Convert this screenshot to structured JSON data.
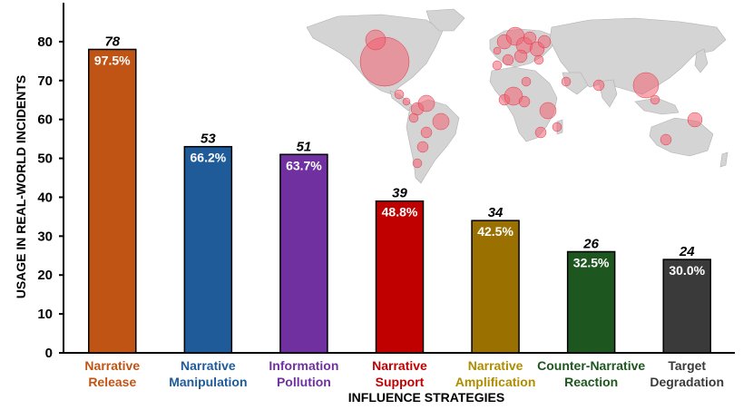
{
  "chart_data": {
    "type": "bar",
    "xlabel": "INFLUENCE STRATEGIES",
    "ylabel": "USAGE IN REAL-WORLD INCIDENTS",
    "ylim": [
      0,
      90
    ],
    "yticks": [
      0,
      10,
      20,
      30,
      40,
      50,
      60,
      70,
      80
    ],
    "grid": false,
    "categories": [
      [
        "Narrative",
        "Release"
      ],
      [
        "Narrative",
        "Manipulation"
      ],
      [
        "Information",
        "Pollution"
      ],
      [
        "Narrative",
        "Support"
      ],
      [
        "Narrative",
        "Amplification"
      ],
      [
        "Counter-Narrative",
        "Reaction"
      ],
      [
        "Target",
        "Degradation"
      ]
    ],
    "values": [
      78,
      53,
      51,
      39,
      34,
      26,
      24
    ],
    "percent_labels": [
      "97.5%",
      "66.2%",
      "63.7%",
      "48.8%",
      "42.5%",
      "32.5%",
      "30.0%"
    ],
    "colors": [
      "#c05414",
      "#1f5b99",
      "#7030a0",
      "#c00000",
      "#9a7000",
      "#1e5620",
      "#3a3a3a"
    ],
    "label_colors": [
      "#c05414",
      "#1f5b99",
      "#7030a0",
      "#c00000",
      "#b08c00",
      "#1e5620",
      "#3a3a3a"
    ],
    "inset": {
      "type": "world-map-bubbles",
      "land_color": "#d4d4d4",
      "bubble_color": "#f06070"
    }
  }
}
